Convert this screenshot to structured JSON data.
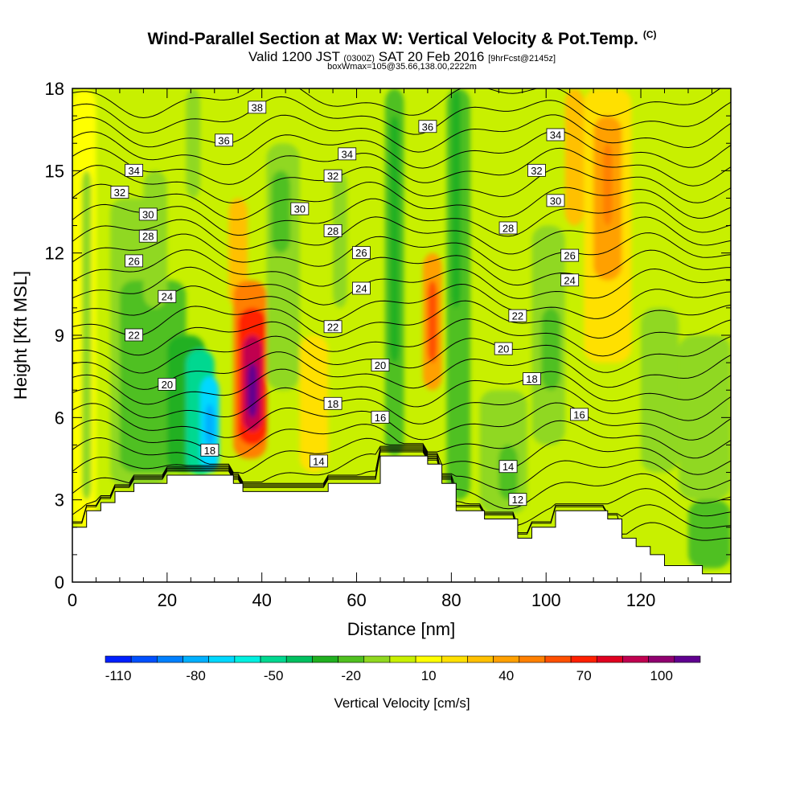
{
  "header": {
    "title_main": "Wind-Parallel Section at Max W: Vertical Velocity & Pot.Temp.",
    "title_mark": "(C)",
    "subtitle_a": "Valid 1200 JST",
    "subtitle_b": "(0300Z)",
    "subtitle_c": "SAT 20 Feb 2016",
    "subtitle_d": "[9hrFcst@2145z]",
    "subtitle_line3": "boxWmax=105@35.66,138.00,2222m"
  },
  "chart_data": {
    "type": "heatmap",
    "xlabel": "Distance [nm]",
    "ylabel": "Height [Kft MSL]",
    "xlim": [
      0,
      139
    ],
    "ylim": [
      0,
      18
    ],
    "x_ticks": [
      0,
      20,
      40,
      60,
      80,
      100,
      120
    ],
    "y_ticks": [
      0,
      3,
      6,
      9,
      12,
      15,
      18
    ],
    "colorbar": {
      "title": "Vertical Velocity [cm/s]",
      "tick_labels": [
        -110,
        -80,
        -50,
        -20,
        10,
        40,
        70,
        100
      ],
      "levels": [
        -110,
        -100,
        -90,
        -80,
        -70,
        -60,
        -50,
        -40,
        -30,
        -20,
        -10,
        0,
        10,
        20,
        30,
        40,
        50,
        60,
        70,
        80,
        90,
        100,
        110
      ],
      "colors": [
        "#0020ff",
        "#0050ff",
        "#0080ff",
        "#00b0ff",
        "#00d8ff",
        "#00f0e0",
        "#00d890",
        "#00c060",
        "#20b020",
        "#50c020",
        "#90d820",
        "#c8f000",
        "#ffff00",
        "#ffe000",
        "#ffc000",
        "#ffa000",
        "#ff8000",
        "#ff5000",
        "#ff2000",
        "#e00020",
        "#c00050",
        "#900070",
        "#600090"
      ]
    },
    "vertical_velocity_cells": [
      {
        "x0": 0,
        "x1": 5,
        "y0": 2,
        "y1": 18,
        "w": 10
      },
      {
        "x0": 2,
        "x1": 4,
        "y0": 3,
        "y1": 15,
        "w": -10
      },
      {
        "x0": 8,
        "x1": 20,
        "y0": 3.5,
        "y1": 14,
        "w": -10
      },
      {
        "x0": 10,
        "x1": 24,
        "y0": 4,
        "y1": 11,
        "w": -20
      },
      {
        "x0": 15,
        "x1": 20,
        "y0": 10,
        "y1": 15,
        "w": -10
      },
      {
        "x0": 20,
        "x1": 28,
        "y0": 4,
        "y1": 9,
        "w": -30
      },
      {
        "x0": 24,
        "x1": 30,
        "y0": 3.9,
        "y1": 8.5,
        "w": -50
      },
      {
        "x0": 27,
        "x1": 31,
        "y0": 4,
        "y1": 7.5,
        "w": -70
      },
      {
        "x0": 28,
        "x1": 30,
        "y0": 5,
        "y1": 6.5,
        "w": -80
      },
      {
        "x0": 24,
        "x1": 27,
        "y0": 14,
        "y1": 18,
        "w": -10
      },
      {
        "x0": 33,
        "x1": 37,
        "y0": 10,
        "y1": 14,
        "w": 30
      },
      {
        "x0": 34,
        "x1": 41,
        "y0": 4.5,
        "y1": 11,
        "w": 50
      },
      {
        "x0": 35,
        "x1": 41,
        "y0": 5,
        "y1": 10,
        "w": 70
      },
      {
        "x0": 36,
        "x1": 40,
        "y0": 5.5,
        "y1": 9,
        "w": 90
      },
      {
        "x0": 37,
        "x1": 39,
        "y0": 6,
        "y1": 8,
        "w": 110
      },
      {
        "x0": 41,
        "x1": 48,
        "y0": 7,
        "y1": 16,
        "w": -10
      },
      {
        "x0": 42,
        "x1": 46,
        "y0": 12,
        "y1": 15,
        "w": -20
      },
      {
        "x0": 48,
        "x1": 54,
        "y0": 4,
        "y1": 9,
        "w": 20
      },
      {
        "x0": 55,
        "x1": 58,
        "y0": 10,
        "y1": 15,
        "w": -10
      },
      {
        "x0": 66,
        "x1": 70,
        "y0": 4.6,
        "y1": 18,
        "w": -20
      },
      {
        "x0": 67,
        "x1": 69,
        "y0": 8,
        "y1": 17,
        "w": -30
      },
      {
        "x0": 74,
        "x1": 78,
        "y0": 7,
        "y1": 12,
        "w": 40
      },
      {
        "x0": 75,
        "x1": 77,
        "y0": 8,
        "y1": 11,
        "w": 60
      },
      {
        "x0": 79,
        "x1": 84,
        "y0": 3,
        "y1": 18,
        "w": -20
      },
      {
        "x0": 80,
        "x1": 82,
        "y0": 10,
        "y1": 18,
        "w": -30
      },
      {
        "x0": 86,
        "x1": 96,
        "y0": 2.5,
        "y1": 7,
        "w": -10
      },
      {
        "x0": 90,
        "x1": 94,
        "y0": 3,
        "y1": 5,
        "w": -20
      },
      {
        "x0": 97,
        "x1": 104,
        "y0": 5,
        "y1": 13,
        "w": -10
      },
      {
        "x0": 99,
        "x1": 103,
        "y0": 7,
        "y1": 10,
        "w": -20
      },
      {
        "x0": 104,
        "x1": 108,
        "y0": 13,
        "y1": 18,
        "w": 30
      },
      {
        "x0": 108,
        "x1": 118,
        "y0": 8,
        "y1": 18,
        "w": 20
      },
      {
        "x0": 110,
        "x1": 116,
        "y0": 11,
        "y1": 17,
        "w": 40
      },
      {
        "x0": 112,
        "x1": 114,
        "y0": 13,
        "y1": 16,
        "w": 50
      },
      {
        "x0": 120,
        "x1": 128,
        "y0": 4,
        "y1": 10,
        "w": -10
      },
      {
        "x0": 128,
        "x1": 139,
        "y0": 3,
        "y1": 9,
        "w": -10
      },
      {
        "x0": 130,
        "x1": 139,
        "y0": 0.5,
        "y1": 3,
        "w": -20
      }
    ],
    "terrain": [
      [
        0,
        2.0
      ],
      [
        3,
        2.0
      ],
      [
        3,
        2.6
      ],
      [
        6,
        2.6
      ],
      [
        6,
        2.9
      ],
      [
        9,
        2.9
      ],
      [
        9,
        3.3
      ],
      [
        13,
        3.3
      ],
      [
        13,
        3.6
      ],
      [
        20,
        3.6
      ],
      [
        20,
        3.9
      ],
      [
        34,
        3.9
      ],
      [
        34,
        3.6
      ],
      [
        36,
        3.6
      ],
      [
        36,
        3.3
      ],
      [
        54,
        3.3
      ],
      [
        54,
        3.6
      ],
      [
        65,
        3.6
      ],
      [
        65,
        4.6
      ],
      [
        75,
        4.6
      ],
      [
        75,
        4.3
      ],
      [
        78,
        4.3
      ],
      [
        78,
        3.6
      ],
      [
        81,
        3.6
      ],
      [
        81,
        2.6
      ],
      [
        87,
        2.6
      ],
      [
        87,
        2.3
      ],
      [
        94,
        2.3
      ],
      [
        94,
        1.6
      ],
      [
        97,
        1.6
      ],
      [
        97,
        2.0
      ],
      [
        102,
        2.0
      ],
      [
        102,
        2.6
      ],
      [
        113,
        2.6
      ],
      [
        113,
        2.3
      ],
      [
        116,
        2.3
      ],
      [
        116,
        1.6
      ],
      [
        119,
        1.6
      ],
      [
        119,
        1.3
      ],
      [
        122,
        1.3
      ],
      [
        122,
        1.0
      ],
      [
        125,
        1.0
      ],
      [
        125,
        0.6
      ],
      [
        133,
        0.6
      ],
      [
        133,
        0.3
      ],
      [
        139,
        0.3
      ]
    ],
    "theta_levels": [
      12,
      13,
      14,
      15,
      16,
      17,
      18,
      19,
      20,
      21,
      22,
      23,
      24,
      25,
      26,
      27,
      28,
      29,
      30,
      31,
      32,
      33,
      34,
      35,
      36,
      37,
      38
    ],
    "contour_labels": [
      {
        "text": "38",
        "x": 39,
        "y": 17.3
      },
      {
        "text": "36",
        "x": 32,
        "y": 16.1
      },
      {
        "text": "36",
        "x": 75,
        "y": 16.6
      },
      {
        "text": "34",
        "x": 13,
        "y": 15.0
      },
      {
        "text": "34",
        "x": 58,
        "y": 15.6
      },
      {
        "text": "34",
        "x": 102,
        "y": 16.3
      },
      {
        "text": "32",
        "x": 10,
        "y": 14.2
      },
      {
        "text": "32",
        "x": 55,
        "y": 14.8
      },
      {
        "text": "32",
        "x": 98,
        "y": 15.0
      },
      {
        "text": "30",
        "x": 16,
        "y": 13.4
      },
      {
        "text": "30",
        "x": 48,
        "y": 13.6
      },
      {
        "text": "30",
        "x": 102,
        "y": 13.9
      },
      {
        "text": "28",
        "x": 16,
        "y": 12.6
      },
      {
        "text": "28",
        "x": 55,
        "y": 12.8
      },
      {
        "text": "28",
        "x": 92,
        "y": 12.9
      },
      {
        "text": "26",
        "x": 13,
        "y": 11.7
      },
      {
        "text": "26",
        "x": 61,
        "y": 12.0
      },
      {
        "text": "26",
        "x": 105,
        "y": 11.9
      },
      {
        "text": "24",
        "x": 20,
        "y": 10.4
      },
      {
        "text": "24",
        "x": 61,
        "y": 10.7
      },
      {
        "text": "24",
        "x": 105,
        "y": 11.0
      },
      {
        "text": "22",
        "x": 13,
        "y": 9.0
      },
      {
        "text": "22",
        "x": 55,
        "y": 9.3
      },
      {
        "text": "22",
        "x": 94,
        "y": 9.7
      },
      {
        "text": "20",
        "x": 20,
        "y": 7.2
      },
      {
        "text": "20",
        "x": 65,
        "y": 7.9
      },
      {
        "text": "20",
        "x": 91,
        "y": 8.5
      },
      {
        "text": "18",
        "x": 55,
        "y": 6.5
      },
      {
        "text": "18",
        "x": 97,
        "y": 7.4
      },
      {
        "text": "18",
        "x": 29,
        "y": 4.8
      },
      {
        "text": "16",
        "x": 65,
        "y": 6.0
      },
      {
        "text": "16",
        "x": 107,
        "y": 6.1
      },
      {
        "text": "14",
        "x": 52,
        "y": 4.4
      },
      {
        "text": "14",
        "x": 92,
        "y": 4.2
      },
      {
        "text": "12",
        "x": 94,
        "y": 3.0
      }
    ]
  }
}
